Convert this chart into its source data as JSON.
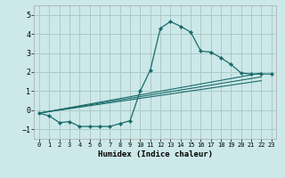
{
  "background_color": "#cce8e8",
  "grid_color": "#aacccc",
  "line_color": "#1a6b6b",
  "marker_color": "#1a6b6b",
  "xlabel": "Humidex (Indice chaleur)",
  "ylim": [
    -1.5,
    5.5
  ],
  "xlim": [
    -0.5,
    23.5
  ],
  "yticks": [
    -1,
    0,
    1,
    2,
    3,
    4,
    5
  ],
  "xticks": [
    0,
    1,
    2,
    3,
    4,
    5,
    6,
    7,
    8,
    9,
    10,
    11,
    12,
    13,
    14,
    15,
    16,
    17,
    18,
    19,
    20,
    21,
    22,
    23
  ],
  "series": [
    {
      "x": [
        0,
        1,
        2,
        3,
        4,
        5,
        6,
        7,
        8,
        9,
        10,
        11,
        12,
        13,
        14,
        15,
        16,
        17,
        18,
        19,
        20,
        21,
        22,
        23
      ],
      "y": [
        -0.15,
        -0.3,
        -0.65,
        -0.6,
        -0.85,
        -0.85,
        -0.85,
        -0.85,
        -0.7,
        -0.55,
        1.0,
        2.1,
        4.3,
        4.65,
        4.4,
        4.1,
        3.1,
        3.05,
        2.75,
        2.4,
        1.95,
        1.9,
        1.9,
        1.9
      ],
      "has_markers": true
    },
    {
      "x": [
        0,
        22
      ],
      "y": [
        -0.15,
        1.95
      ],
      "has_markers": false
    },
    {
      "x": [
        0,
        22
      ],
      "y": [
        -0.15,
        1.75
      ],
      "has_markers": false
    },
    {
      "x": [
        0,
        22
      ],
      "y": [
        -0.15,
        1.55
      ],
      "has_markers": false
    }
  ]
}
